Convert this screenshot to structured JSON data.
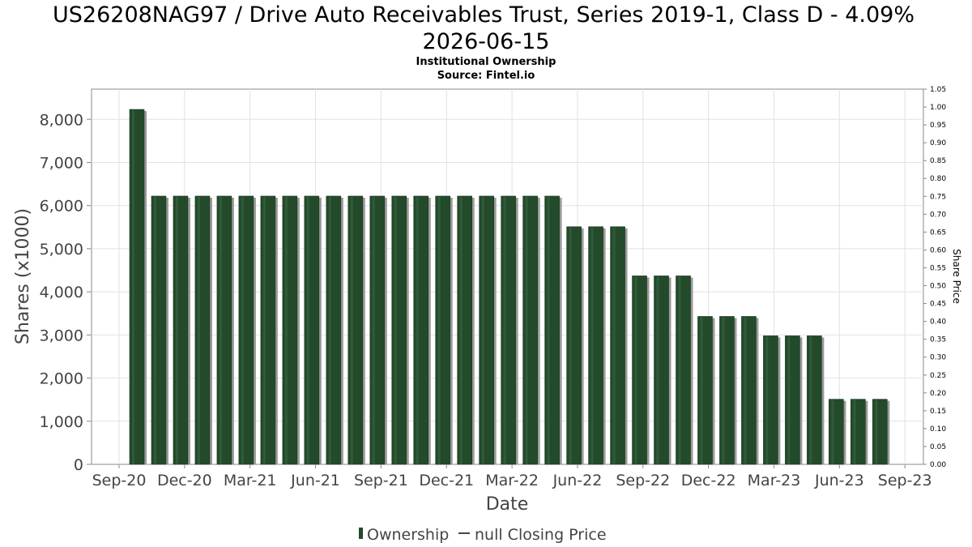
{
  "chart_data": {
    "type": "bar",
    "title_line1": "US26208NAG97 / Drive Auto Receivables Trust, Series 2019-1, Class D - 4.09%",
    "title_line2": "2026-06-15",
    "subtitle_line1": "Institutional Ownership",
    "subtitle_line2": "Source: Fintel.io",
    "xlabel": "Date",
    "ylabel": "Shares (x1000)",
    "y2label": "Share Price",
    "ylim": [
      0,
      8700
    ],
    "y2lim": [
      0,
      1.05
    ],
    "yticks": [
      "0",
      "1,000",
      "2,000",
      "3,000",
      "4,000",
      "5,000",
      "6,000",
      "7,000",
      "8,000"
    ],
    "ytick_values": [
      0,
      1000,
      2000,
      3000,
      4000,
      5000,
      6000,
      7000,
      8000
    ],
    "y2ticks": [
      "0.00",
      "0.05",
      "0.10",
      "0.15",
      "0.20",
      "0.25",
      "0.30",
      "0.35",
      "0.40",
      "0.45",
      "0.50",
      "0.55",
      "0.60",
      "0.65",
      "0.70",
      "0.75",
      "0.80",
      "0.85",
      "0.90",
      "0.95",
      "1.00",
      "1.05"
    ],
    "xticks": [
      "Sep-20",
      "Dec-20",
      "Mar-21",
      "Jun-21",
      "Sep-21",
      "Dec-21",
      "Mar-22",
      "Jun-22",
      "Sep-22",
      "Dec-22",
      "Mar-23",
      "Jun-23",
      "Sep-23"
    ],
    "grid": true,
    "legend_position": "bottom",
    "series": [
      {
        "name": "Ownership",
        "color": "#234a2b",
        "values": [
          8230,
          6220,
          6220,
          6220,
          6220,
          6220,
          6220,
          6220,
          6220,
          6220,
          6220,
          6220,
          6220,
          6220,
          6220,
          6220,
          6220,
          6220,
          6220,
          6220,
          5510,
          5510,
          5510,
          4370,
          4370,
          4370,
          3430,
          3430,
          3430,
          2980,
          2980,
          2980,
          1510,
          1510,
          1510
        ]
      },
      {
        "name": "null Closing Price",
        "color": "#444444",
        "values": []
      }
    ]
  }
}
